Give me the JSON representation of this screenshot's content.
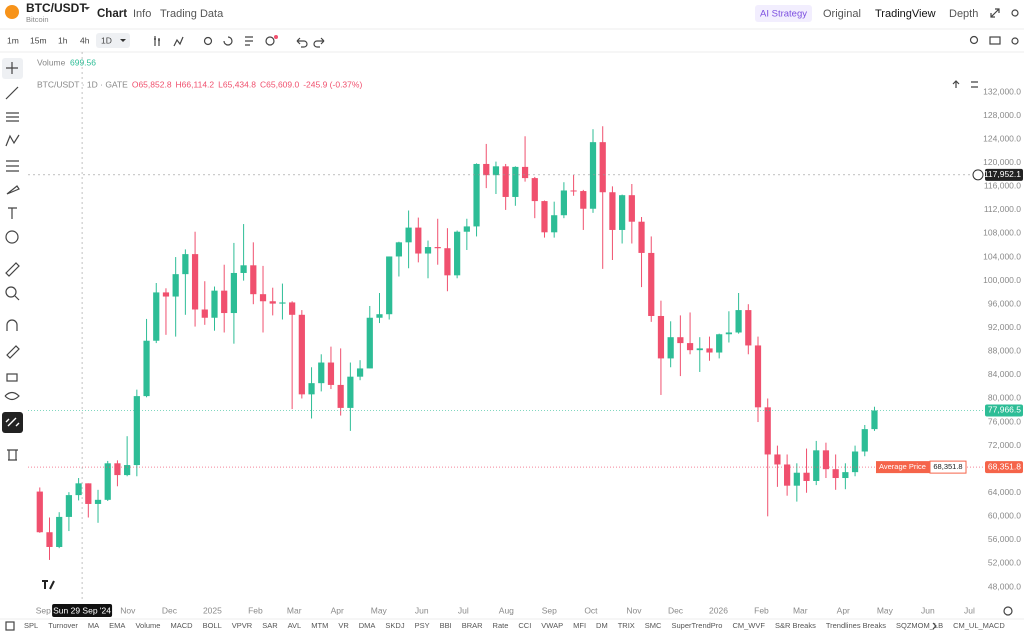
{
  "header": {
    "symbol": "BTC/USDT",
    "name": "Bitcoin",
    "tabs": [
      "Chart",
      "Info",
      "Trading Data"
    ],
    "views": [
      "AI Strategy",
      "Original",
      "TradingView",
      "Depth"
    ]
  },
  "toolbar": {
    "intervals": [
      "1m",
      "15m",
      "1h",
      "4h",
      "1D"
    ]
  },
  "indicators": [
    "SPL",
    "Turnover",
    "MA",
    "EMA",
    "Volume",
    "MACD",
    "BOLL",
    "VPVR",
    "SAR",
    "AVL",
    "MTM",
    "VR",
    "DMA",
    "SKDJ",
    "PSY",
    "BBI",
    "BRAR",
    "Rate",
    "CCI",
    "VWAP",
    "MFI",
    "DM",
    "TRIX",
    "SMC",
    "SuperTrendPro",
    "CM_WVF",
    "S&R Breaks",
    "Trendlines Breaks",
    "SQZMOM_LB",
    "CM_UL_MACD"
  ],
  "chart_data": {
    "type": "candlestick",
    "volume": {
      "label": "Volume",
      "value": 699.56
    },
    "legend": {
      "symbol": "BTC/USDT · 1D · GATE",
      "open": "O65,852.8",
      "high": "H66,114.2",
      "low": "L65,434.8",
      "close": "C65,609.0",
      "change": "-245.9 (-0.37%)"
    },
    "up_color": "#2dbd96",
    "down_color": "#f0506e",
    "grid": false,
    "x": [
      "2024-08-26",
      "2024-09-02",
      "2024-09-09",
      "2024-09-16",
      "2024-09-23",
      "2024-09-30",
      "2024-10-07",
      "2024-10-14",
      "2024-10-21",
      "2024-10-28",
      "2024-11-04",
      "2024-11-11",
      "2024-11-18",
      "2024-11-25",
      "2024-12-02",
      "2024-12-09",
      "2024-12-16",
      "2024-12-23",
      "2024-12-30",
      "2025-01-06",
      "2025-01-13",
      "2025-01-20",
      "2025-01-27",
      "2025-02-03",
      "2025-02-10",
      "2025-02-17",
      "2025-02-24",
      "2025-03-03",
      "2025-03-10",
      "2025-03-17",
      "2025-03-24",
      "2025-03-31",
      "2025-04-07",
      "2025-04-14",
      "2025-04-21",
      "2025-04-28",
      "2025-05-05",
      "2025-05-12",
      "2025-05-19",
      "2025-05-26",
      "2025-06-02",
      "2025-06-09",
      "2025-06-16",
      "2025-06-23",
      "2025-06-30",
      "2025-07-07",
      "2025-07-14",
      "2025-07-21",
      "2025-07-28",
      "2025-08-04",
      "2025-08-11",
      "2025-08-18",
      "2025-08-25",
      "2025-09-01",
      "2025-09-08",
      "2025-09-15",
      "2025-09-22",
      "2025-09-29",
      "2025-10-06",
      "2025-10-13",
      "2025-10-20",
      "2025-10-27",
      "2025-11-03",
      "2025-11-10",
      "2025-11-17",
      "2025-11-24",
      "2025-12-01",
      "2025-12-08",
      "2025-12-15",
      "2025-12-22",
      "2025-12-29",
      "2026-01-05",
      "2026-01-12",
      "2026-01-19",
      "2026-01-26",
      "2026-02-02",
      "2026-02-09",
      "2026-02-16",
      "2026-02-23",
      "2026-03-02",
      "2026-03-09",
      "2026-03-16",
      "2026-03-23",
      "2026-03-30",
      "2026-04-06",
      "2026-04-13",
      "2026-04-20"
    ],
    "open": [
      64200,
      57300,
      54800,
      59900,
      63600,
      65600,
      62100,
      62800,
      69000,
      67000,
      68700,
      80400,
      89800,
      98000,
      97300,
      101100,
      104500,
      95100,
      93700,
      98300,
      94500,
      101300,
      102600,
      97700,
      96500,
      96100,
      96300,
      94200,
      80700,
      82600,
      86100,
      82300,
      78400,
      83700,
      85100,
      93700,
      94300,
      104100,
      106500,
      109000,
      104600,
      105700,
      105500,
      100900,
      108300,
      109200,
      119800,
      117900,
      119400,
      114200,
      119300,
      117400,
      113500,
      108200,
      111100,
      115300,
      115200,
      112200,
      123500,
      115000,
      108600,
      114500,
      110000,
      104700,
      94000,
      86800,
      90400,
      89400,
      88200,
      88500,
      87800,
      90900,
      91200,
      95000,
      89000,
      78500,
      70500,
      68800,
      65200,
      67400,
      66000,
      71200,
      68000,
      66500,
      67500,
      71000,
      74800
    ],
    "high": [
      64900,
      59800,
      60700,
      64100,
      66500,
      65600,
      64500,
      69400,
      69500,
      73600,
      81500,
      93500,
      99600,
      98700,
      104000,
      105300,
      108300,
      99900,
      99000,
      102700,
      106400,
      109600,
      106500,
      102500,
      98800,
      99500,
      96500,
      95000,
      85300,
      87500,
      88800,
      88500,
      86100,
      86500,
      95700,
      97900,
      104100,
      106600,
      111900,
      110700,
      106800,
      110500,
      108900,
      108500,
      110500,
      119900,
      123200,
      120200,
      119800,
      119400,
      124500,
      117600,
      113600,
      113400,
      116700,
      118000,
      115400,
      125700,
      126200,
      116000,
      114600,
      116400,
      110800,
      107500,
      96600,
      93100,
      94100,
      94600,
      90400,
      90500,
      91000,
      94800,
      97900,
      96000,
      90500,
      80000,
      72000,
      70500,
      69000,
      71500,
      72800,
      72500,
      70500,
      69000,
      72000,
      75500,
      78600
    ],
    "low": [
      57200,
      52600,
      54600,
      57500,
      62700,
      59800,
      58900,
      62600,
      65100,
      66800,
      66800,
      80200,
      89400,
      90800,
      90500,
      94200,
      92200,
      92500,
      91500,
      91200,
      89300,
      100000,
      96000,
      91200,
      94100,
      93400,
      78200,
      80000,
      76600,
      81200,
      81600,
      77100,
      74500,
      83100,
      85100,
      92800,
      93400,
      100700,
      102100,
      103100,
      100400,
      102700,
      98200,
      100400,
      105200,
      107500,
      115700,
      114700,
      112000,
      112700,
      116800,
      110600,
      107300,
      107300,
      110600,
      114400,
      108600,
      111500,
      102000,
      103500,
      106300,
      106300,
      98900,
      93000,
      80600,
      85300,
      83800,
      87500,
      84500,
      86400,
      86800,
      89500,
      91000,
      87500,
      76000,
      60000,
      65000,
      63500,
      62500,
      64000,
      65300,
      66500,
      64500,
      64600,
      66800,
      70200,
      74500
    ],
    "close": [
      57300,
      54800,
      59900,
      63600,
      65600,
      62100,
      62800,
      69000,
      67000,
      68700,
      80400,
      89800,
      98000,
      97300,
      101100,
      104500,
      95100,
      93700,
      98300,
      94500,
      101300,
      102600,
      97700,
      96500,
      96100,
      96300,
      94200,
      80700,
      82600,
      86100,
      82300,
      78400,
      83700,
      85100,
      93700,
      94300,
      104100,
      106500,
      109000,
      104600,
      105700,
      105500,
      100900,
      108300,
      109200,
      119800,
      117900,
      119400,
      114200,
      119300,
      117400,
      113500,
      108200,
      111100,
      115300,
      115200,
      112200,
      123500,
      115000,
      108600,
      114500,
      110000,
      104700,
      94000,
      86800,
      90400,
      89400,
      88200,
      88500,
      87800,
      90900,
      91200,
      95000,
      89000,
      78500,
      70500,
      68800,
      65200,
      67400,
      66000,
      71200,
      68000,
      66500,
      67500,
      71000,
      74800,
      77966.5
    ],
    "xlim": [
      "2024-08-21",
      "2026-07-05"
    ],
    "xticks": [
      {
        "value": "2024-09-01",
        "label": "Sep"
      },
      {
        "value": "2024-11-01",
        "label": "Nov"
      },
      {
        "value": "2024-12-01",
        "label": "Dec"
      },
      {
        "value": "2025-01-01",
        "label": "2025"
      },
      {
        "value": "2025-02-01",
        "label": "Feb"
      },
      {
        "value": "2025-03-01",
        "label": "Mar"
      },
      {
        "value": "2025-04-01",
        "label": "Apr"
      },
      {
        "value": "2025-05-01",
        "label": "May"
      },
      {
        "value": "2025-06-01",
        "label": "Jun"
      },
      {
        "value": "2025-07-01",
        "label": "Jul"
      },
      {
        "value": "2025-08-01",
        "label": "Aug"
      },
      {
        "value": "2025-09-01",
        "label": "Sep"
      },
      {
        "value": "2025-10-01",
        "label": "Oct"
      },
      {
        "value": "2025-11-01",
        "label": "Nov"
      },
      {
        "value": "2025-12-01",
        "label": "Dec"
      },
      {
        "value": "2026-01-01",
        "label": "2026"
      },
      {
        "value": "2026-02-01",
        "label": "Feb"
      },
      {
        "value": "2026-03-01",
        "label": "Mar"
      },
      {
        "value": "2026-04-01",
        "label": "Apr"
      },
      {
        "value": "2026-05-01",
        "label": "May"
      },
      {
        "value": "2026-06-01",
        "label": "Jun"
      },
      {
        "value": "2026-07-01",
        "label": "Jul"
      }
    ],
    "ylim": [
      45800,
      138800
    ],
    "yticks": [
      {
        "value": 48000,
        "label": "48,000.0"
      },
      {
        "value": 52000,
        "label": "52,000.0"
      },
      {
        "value": 56000,
        "label": "56,000.0"
      },
      {
        "value": 60000,
        "label": "60,000.0"
      },
      {
        "value": 64000,
        "label": "64,000.0"
      },
      {
        "value": 68000,
        "label": "68,000.0"
      },
      {
        "value": 72000,
        "label": "72,000.0"
      },
      {
        "value": 76000,
        "label": "76,000.0"
      },
      {
        "value": 80000,
        "label": "80,000.0"
      },
      {
        "value": 84000,
        "label": "84,000.0"
      },
      {
        "value": 88000,
        "label": "88,000.0"
      },
      {
        "value": 92000,
        "label": "92,000.0"
      },
      {
        "value": 96000,
        "label": "96,000.0"
      },
      {
        "value": 100000,
        "label": "100,000.0"
      },
      {
        "value": 104000,
        "label": "104,000.0"
      },
      {
        "value": 108000,
        "label": "108,000.0"
      },
      {
        "value": 112000,
        "label": "112,000.0"
      },
      {
        "value": 116000,
        "label": "116,000.0"
      },
      {
        "value": 120000,
        "label": "120,000.0"
      },
      {
        "value": 124000,
        "label": "124,000.0"
      },
      {
        "value": 128000,
        "label": "128,000.0"
      },
      {
        "value": 132000,
        "label": "132,000.0"
      }
    ],
    "crosshair": {
      "x": "2024-09-29",
      "x_label": "Sun 29 Sep '24",
      "y": 117952.1,
      "y_label": "117,952.1"
    },
    "last_price": {
      "value": 77966.5,
      "label": "77,966.5"
    },
    "average_price": {
      "name": "Average Price",
      "value": 68351.8,
      "label": "68,351.8"
    }
  }
}
